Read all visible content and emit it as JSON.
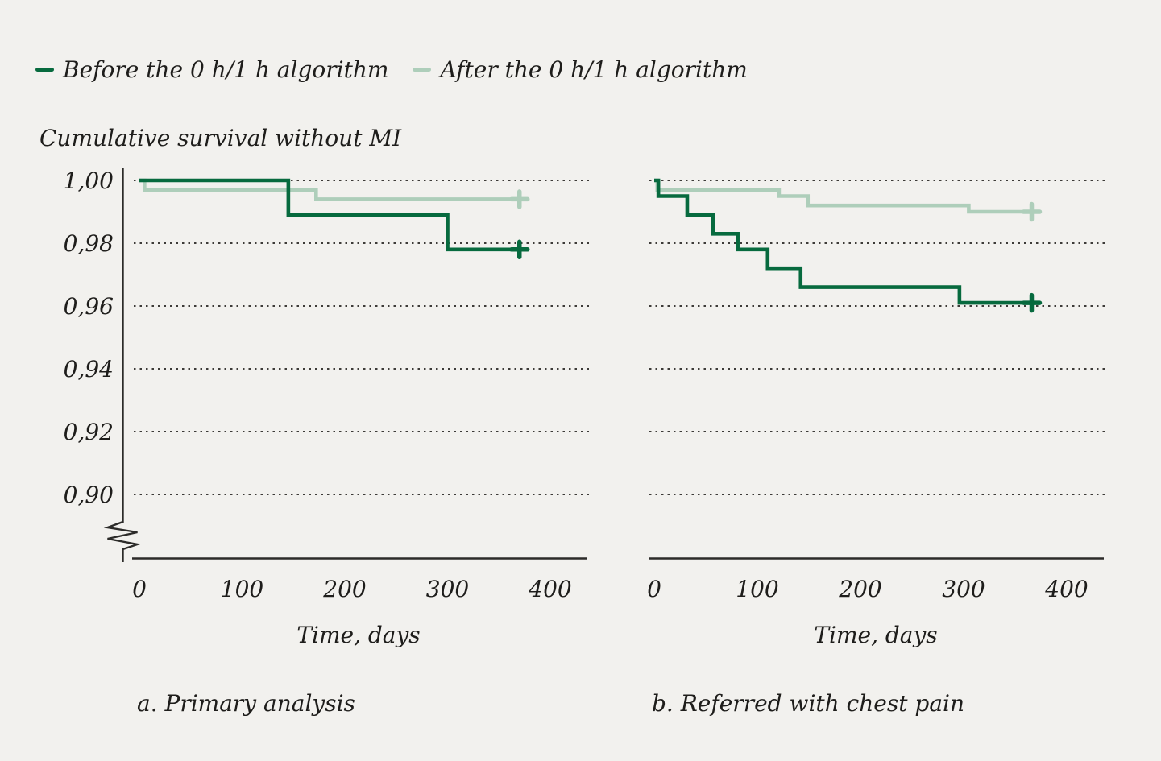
{
  "legend": {
    "before_label": "Before the 0 h/1 h algorithm",
    "after_label": "After the 0 h/1 h algorithm"
  },
  "title": "Cumulative survival without MI",
  "colors": {
    "before": "#076a3e",
    "after": "#aeceba",
    "background": "#f2f1ee",
    "text": "#1e1d1b",
    "axis": "#2c2b29",
    "grid": "#3d3b38"
  },
  "chart_data": [
    {
      "type": "line",
      "subtype": "kaplan-meier-step",
      "panel": "a",
      "caption": "a. Primary analysis",
      "xlabel": "Time, days",
      "ylabel": "Cumulative survival without MI",
      "xlim": [
        0,
        435
      ],
      "x_ticks": [
        0,
        100,
        200,
        300,
        400
      ],
      "x_tick_labels": [
        "0",
        "100",
        "200",
        "300",
        "400"
      ],
      "y_ticks": [
        1.0,
        0.98,
        0.96,
        0.94,
        0.92,
        0.9
      ],
      "y_tick_labels": [
        "1,00",
        "0,98",
        "0,96",
        "0,94",
        "0,92",
        "0,90"
      ],
      "y_axis_break": true,
      "grid": "dotted-horizontal",
      "legend_position": "top-left-above-chart",
      "series": [
        {
          "name": "Before the 0 h/1 h algorithm",
          "color": "#076a3e",
          "points": [
            [
              0,
              1.0
            ],
            [
              145,
              0.989
            ],
            [
              300,
              0.978
            ]
          ],
          "censor_day": 370,
          "censor_value": 0.978
        },
        {
          "name": "After the 0 h/1 h algorithm",
          "color": "#aeceba",
          "points": [
            [
              0,
              1.0
            ],
            [
              5,
              0.997
            ],
            [
              172,
              0.994
            ]
          ],
          "censor_day": 370,
          "censor_value": 0.994
        }
      ]
    },
    {
      "type": "line",
      "subtype": "kaplan-meier-step",
      "panel": "b",
      "caption": "b. Referred with chest pain",
      "xlabel": "Time, days",
      "ylabel": "Cumulative survival without MI",
      "xlim": [
        0,
        435
      ],
      "x_ticks": [
        0,
        100,
        200,
        300,
        400
      ],
      "x_tick_labels": [
        "0",
        "100",
        "200",
        "300",
        "400"
      ],
      "y_ticks": [
        1.0,
        0.98,
        0.96,
        0.94,
        0.92,
        0.9
      ],
      "y_tick_labels": [
        "1,00",
        "0,98",
        "0,96",
        "0,94",
        "0,92",
        "0,90"
      ],
      "y_axis_break": false,
      "grid": "dotted-horizontal",
      "series": [
        {
          "name": "Before the 0 h/1 h algorithm",
          "color": "#076a3e",
          "points": [
            [
              0,
              1.0
            ],
            [
              4,
              0.995
            ],
            [
              32,
              0.989
            ],
            [
              57,
              0.983
            ],
            [
              81,
              0.978
            ],
            [
              110,
              0.972
            ],
            [
              142,
              0.966
            ],
            [
              296,
              0.961
            ]
          ],
          "censor_day": 366,
          "censor_value": 0.961
        },
        {
          "name": "After the 0 h/1 h algorithm",
          "color": "#aeceba",
          "points": [
            [
              0,
              1.0
            ],
            [
              3,
              0.997
            ],
            [
              121,
              0.995
            ],
            [
              149,
              0.992
            ],
            [
              305,
              0.99
            ]
          ],
          "censor_day": 366,
          "censor_value": 0.99
        }
      ]
    }
  ]
}
